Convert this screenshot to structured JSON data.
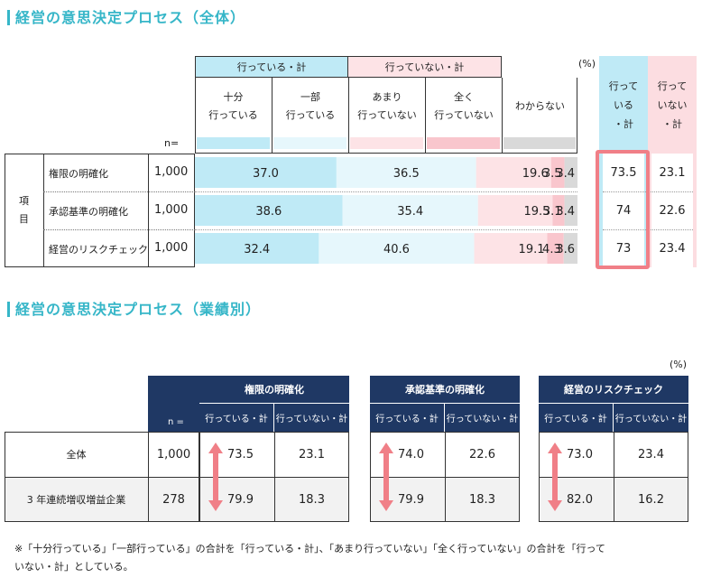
{
  "section1": {
    "title": "経営の意思決定プロセス（全体）",
    "percent_unit": "(%)",
    "n_label": "n=",
    "group_labels": [
      "行っている・計",
      "行っていない・計"
    ],
    "col_labels": [
      "十分\n行っている",
      "一部\n行っている",
      "あまり\n行っていない",
      "全く\n行っていない",
      "わからない"
    ],
    "summary_labels": [
      "行って\nいる\n・計",
      "行って\nいない\n・計"
    ],
    "row_group_label": "項\n目",
    "colors": {
      "sufficient": "#bfeaf6",
      "partial": "#e6f7fc",
      "rarely": "#fde3e6",
      "never": "#f9c6cd",
      "unknown": "#d9d9d9",
      "summary_yes": "#bfeaf6",
      "summary_no": "#fcdde1",
      "highlight": "#f07f87"
    }
  },
  "chart_data": {
    "type": "bar",
    "stacked": true,
    "orientation": "horizontal",
    "title": "経営の意思決定プロセス（全体）",
    "unit": "%",
    "xlim": [
      0,
      100
    ],
    "categories": [
      "権限の明確化",
      "承認基準の明確化",
      "経営のリスクチェック"
    ],
    "n": [
      "1,000",
      "1,000",
      "1,000"
    ],
    "series": [
      {
        "name": "十分行っている",
        "values": [
          37.0,
          38.6,
          32.4
        ]
      },
      {
        "name": "一部行っている",
        "values": [
          36.5,
          35.4,
          40.6
        ]
      },
      {
        "name": "あまり行っていない",
        "values": [
          19.6,
          19.5,
          19.1
        ]
      },
      {
        "name": "全く行っていない",
        "values": [
          3.5,
          3.1,
          4.3
        ]
      },
      {
        "name": "わからない",
        "values": [
          3.4,
          3.4,
          3.6
        ]
      }
    ],
    "summary": {
      "行っている・計": [
        73.5,
        74.0,
        73.0
      ],
      "行っていない・計": [
        23.1,
        22.6,
        23.4
      ]
    }
  },
  "section2": {
    "title": "経営の意思決定プロセス（業績別）",
    "percent_unit": "(%)",
    "n_label": "n =",
    "groups": [
      {
        "name": "権限の明確化",
        "col_yes": "行っている・計",
        "col_no": "行っていない・計",
        "values_yes": [
          "73.5",
          "79.9"
        ],
        "values_no": [
          "23.1",
          "18.3"
        ]
      },
      {
        "name": "承認基準の明確化",
        "col_yes": "行っている・計",
        "col_no": "行っていない・計",
        "values_yes": [
          "74.0",
          "79.9"
        ],
        "values_no": [
          "22.6",
          "18.3"
        ]
      },
      {
        "name": "経営のリスクチェック",
        "col_yes": "行っている・計",
        "col_no": "行っていない・計",
        "values_yes": [
          "73.0",
          "82.0"
        ],
        "values_no": [
          "23.4",
          "16.2"
        ]
      }
    ],
    "rows": [
      {
        "label": "全体",
        "n": "1,000"
      },
      {
        "label": "3 年連続増収増益企業",
        "n": "278"
      }
    ],
    "arrow_color": "#f07f87"
  },
  "footnote": "※「十分行っている」「一部行っている」の合計を「行っている・計」、「あまり行っていない」「全く行っていない」の合計を「行って\nいない・計」としている。"
}
